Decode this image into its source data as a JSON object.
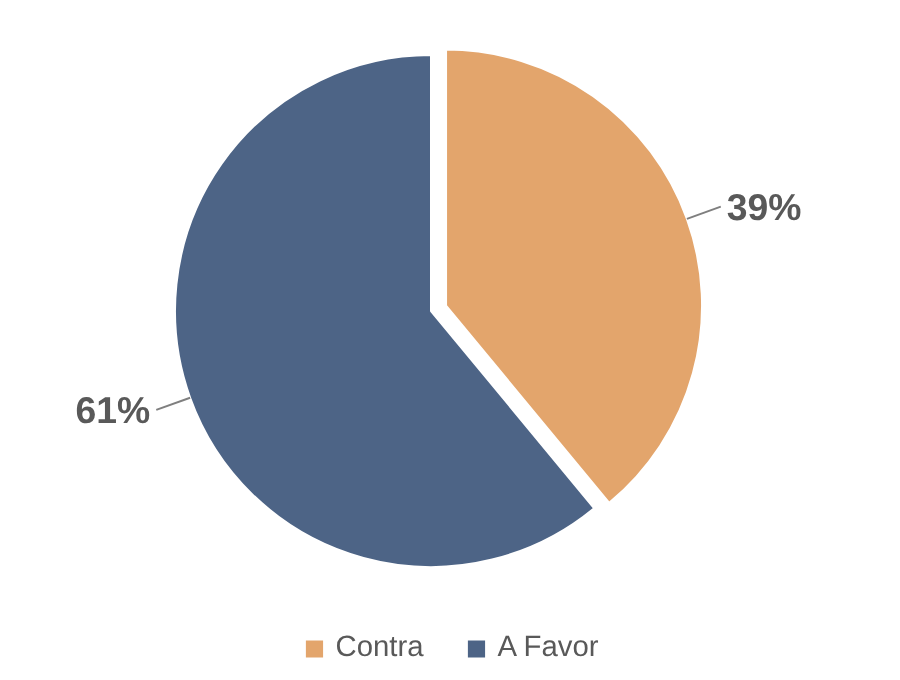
{
  "chart_data": {
    "type": "pie",
    "categories": [
      "Contra",
      "A Favor"
    ],
    "values": [
      39,
      61
    ],
    "colors": [
      "#e3a56c",
      "#4d6486"
    ],
    "value_labels": [
      "39%",
      "61%"
    ],
    "legend": "bottom"
  }
}
